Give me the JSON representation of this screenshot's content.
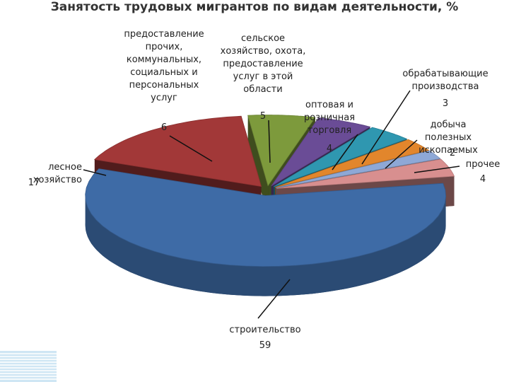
{
  "chart_data": {
    "type": "pie3d",
    "title": "Занятость трудовых мигрантов по видам деятельности, %",
    "categories": [
      "строительство",
      "лесное хозяйство",
      "предоставление\nпрочих,\nкоммунальных,\nсоциальных и\nперсональных\nуслуг",
      "сельское\nхозяйство, охота,\nпредоставление\nуслуг в этой\nобласти",
      "оптовая и\nрозничная\nторговля",
      "обрабатывающие\nпроизводства",
      "добыча полезных\nископаемых",
      "прочее"
    ],
    "values": [
      59,
      17,
      6,
      5,
      4,
      3,
      2,
      4
    ],
    "colors": [
      "#3e6ba6",
      "#a23838",
      "#7d9a3c",
      "#6a4c96",
      "#2f97b0",
      "#e2862c",
      "#8ea8d6",
      "#d88f8f"
    ]
  }
}
